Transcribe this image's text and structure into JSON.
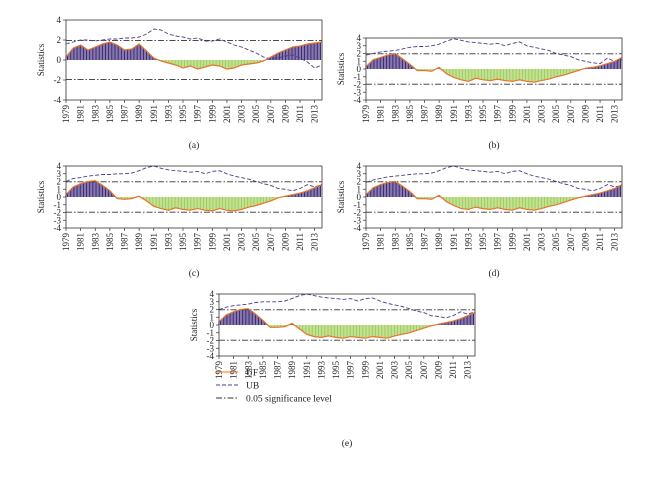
{
  "chart_data": [
    {
      "type": "line",
      "panel_label": "(a)",
      "ylabel": "Statistics",
      "ylim": [
        -4,
        4
      ],
      "yticks": [
        -4,
        -2,
        0,
        2,
        4
      ],
      "x": [
        1979,
        1980,
        1981,
        1982,
        1983,
        1984,
        1985,
        1986,
        1987,
        1988,
        1989,
        1990,
        1991,
        1992,
        1993,
        1994,
        1995,
        1996,
        1997,
        1998,
        1999,
        2000,
        2001,
        2002,
        2003,
        2004,
        2005,
        2006,
        2007,
        2008,
        2009,
        2010,
        2011,
        2012,
        2013,
        2014
      ],
      "xticks": [
        1979,
        1981,
        1983,
        1985,
        1987,
        1989,
        1991,
        1993,
        1995,
        1997,
        1999,
        2001,
        2003,
        2005,
        2007,
        2009,
        2011,
        2013
      ],
      "significance_level": [
        -1.96,
        1.96
      ],
      "series": [
        {
          "name": "UF",
          "values": [
            0.3,
            1.2,
            1.5,
            1.0,
            1.3,
            1.6,
            1.8,
            1.5,
            1.0,
            1.1,
            1.6,
            0.9,
            0.2,
            -0.1,
            -0.3,
            -0.5,
            -0.8,
            -0.6,
            -0.9,
            -0.7,
            -0.5,
            -0.6,
            -0.9,
            -0.8,
            -0.5,
            -0.4,
            -0.3,
            -0.1,
            0.3,
            0.7,
            1.0,
            1.3,
            1.4,
            1.6,
            1.7,
            1.8
          ]
        },
        {
          "name": "UB",
          "values": [
            1.6,
            1.8,
            2.0,
            2.0,
            1.9,
            2.0,
            2.1,
            2.1,
            2.2,
            2.2,
            2.3,
            2.6,
            3.1,
            3.0,
            2.6,
            2.4,
            2.3,
            2.1,
            2.2,
            1.9,
            1.9,
            2.1,
            1.8,
            1.5,
            1.3,
            1.0,
            0.7,
            0.3,
            0.1,
            0.2,
            0.4,
            0.5,
            0.2,
            -0.2,
            -0.8,
            -0.5
          ]
        }
      ]
    },
    {
      "type": "line",
      "panel_label": "(b)",
      "ylabel": "Statistics",
      "ylim": [
        -4,
        4
      ],
      "yticks": [
        -4,
        -3,
        -2,
        -1,
        0,
        1,
        2,
        3,
        4
      ],
      "x": [
        1979,
        1980,
        1981,
        1982,
        1983,
        1984,
        1985,
        1986,
        1987,
        1988,
        1989,
        1990,
        1991,
        1992,
        1993,
        1994,
        1995,
        1996,
        1997,
        1998,
        1999,
        2000,
        2001,
        2002,
        2003,
        2004,
        2005,
        2006,
        2007,
        2008,
        2009,
        2010,
        2011,
        2012,
        2013,
        2014
      ],
      "xticks": [
        1979,
        1981,
        1983,
        1985,
        1987,
        1989,
        1991,
        1993,
        1995,
        1997,
        1999,
        2001,
        2003,
        2005,
        2007,
        2009,
        2011,
        2013
      ],
      "significance_level": [
        -1.96,
        1.96
      ],
      "series": [
        {
          "name": "UF",
          "values": [
            0.3,
            1.2,
            1.5,
            1.8,
            2.0,
            1.3,
            0.6,
            -0.2,
            -0.2,
            -0.3,
            0.2,
            -0.6,
            -1.1,
            -1.4,
            -1.6,
            -1.2,
            -1.4,
            -1.5,
            -1.3,
            -1.5,
            -1.6,
            -1.4,
            -1.6,
            -1.7,
            -1.5,
            -1.3,
            -1.0,
            -0.8,
            -0.5,
            -0.2,
            0.1,
            0.2,
            0.4,
            0.7,
            1.0,
            1.5
          ]
        },
        {
          "name": "UB",
          "values": [
            1.8,
            2.0,
            2.2,
            2.3,
            2.4,
            2.6,
            2.8,
            2.9,
            2.9,
            3.0,
            3.2,
            3.6,
            3.9,
            3.7,
            3.5,
            3.4,
            3.3,
            3.2,
            3.3,
            3.0,
            3.3,
            3.5,
            3.0,
            2.8,
            2.6,
            2.4,
            2.0,
            1.8,
            1.6,
            1.2,
            1.0,
            0.8,
            0.7,
            1.4,
            1.0,
            1.2
          ]
        }
      ]
    },
    {
      "type": "line",
      "panel_label": "(c)",
      "ylabel": "Statistics",
      "ylim": [
        -4,
        4
      ],
      "yticks": [
        -4,
        -3,
        -2,
        -1,
        0,
        1,
        2,
        3,
        4
      ],
      "x": [
        1979,
        1980,
        1981,
        1982,
        1983,
        1984,
        1985,
        1986,
        1987,
        1988,
        1989,
        1990,
        1991,
        1992,
        1993,
        1994,
        1995,
        1996,
        1997,
        1998,
        1999,
        2000,
        2001,
        2002,
        2003,
        2004,
        2005,
        2006,
        2007,
        2008,
        2009,
        2010,
        2011,
        2012,
        2013,
        2014
      ],
      "xticks": [
        1979,
        1981,
        1983,
        1985,
        1987,
        1989,
        1991,
        1993,
        1995,
        1997,
        1999,
        2001,
        2003,
        2005,
        2007,
        2009,
        2011,
        2013
      ],
      "significance_level": [
        -1.96,
        1.96
      ],
      "series": [
        {
          "name": "UF",
          "values": [
            0.3,
            1.3,
            1.7,
            2.0,
            2.1,
            1.5,
            0.8,
            -0.2,
            -0.3,
            -0.2,
            0.1,
            -0.5,
            -1.2,
            -1.5,
            -1.7,
            -1.4,
            -1.6,
            -1.7,
            -1.5,
            -1.7,
            -1.8,
            -1.5,
            -1.7,
            -1.8,
            -1.6,
            -1.3,
            -1.1,
            -0.8,
            -0.5,
            -0.1,
            0.1,
            0.3,
            0.5,
            0.8,
            1.2,
            1.6
          ]
        },
        {
          "name": "UB",
          "values": [
            2.0,
            2.4,
            2.5,
            2.7,
            2.8,
            2.9,
            2.9,
            3.0,
            3.0,
            3.1,
            3.4,
            3.8,
            4.0,
            3.7,
            3.5,
            3.4,
            3.3,
            3.2,
            3.3,
            3.0,
            3.3,
            3.4,
            3.0,
            2.7,
            2.5,
            2.3,
            2.0,
            1.7,
            1.5,
            1.1,
            1.0,
            0.8,
            1.1,
            1.6,
            1.3,
            1.6
          ]
        }
      ]
    },
    {
      "type": "line",
      "panel_label": "(d)",
      "ylabel": "Statistics",
      "ylim": [
        -4,
        4
      ],
      "yticks": [
        -4,
        -3,
        -2,
        -1,
        0,
        1,
        2,
        3,
        4
      ],
      "x": [
        1979,
        1980,
        1981,
        1982,
        1983,
        1984,
        1985,
        1986,
        1987,
        1988,
        1989,
        1990,
        1991,
        1992,
        1993,
        1994,
        1995,
        1996,
        1997,
        1998,
        1999,
        2000,
        2001,
        2002,
        2003,
        2004,
        2005,
        2006,
        2007,
        2008,
        2009,
        2010,
        2011,
        2012,
        2013,
        2014
      ],
      "xticks": [
        1979,
        1981,
        1983,
        1985,
        1987,
        1989,
        1991,
        1993,
        1995,
        1997,
        1999,
        2001,
        2003,
        2005,
        2007,
        2009,
        2011,
        2013
      ],
      "significance_level": [
        -1.96,
        1.96
      ],
      "series": [
        {
          "name": "UF",
          "values": [
            0.3,
            1.2,
            1.6,
            1.9,
            2.0,
            1.4,
            0.7,
            -0.2,
            -0.2,
            -0.3,
            0.2,
            -0.6,
            -1.1,
            -1.5,
            -1.6,
            -1.3,
            -1.5,
            -1.6,
            -1.4,
            -1.6,
            -1.7,
            -1.4,
            -1.6,
            -1.7,
            -1.5,
            -1.2,
            -1.0,
            -0.7,
            -0.4,
            -0.1,
            0.1,
            0.3,
            0.5,
            0.8,
            1.1,
            1.6
          ]
        },
        {
          "name": "UB",
          "values": [
            1.9,
            2.2,
            2.4,
            2.6,
            2.7,
            2.8,
            2.9,
            3.0,
            3.0,
            3.1,
            3.4,
            3.8,
            4.0,
            3.7,
            3.5,
            3.4,
            3.3,
            3.2,
            3.3,
            3.0,
            3.3,
            3.4,
            3.0,
            2.7,
            2.5,
            2.3,
            2.0,
            1.7,
            1.5,
            1.1,
            1.0,
            0.8,
            1.1,
            1.6,
            1.3,
            1.5
          ]
        }
      ]
    },
    {
      "type": "line",
      "panel_label": "(e)",
      "ylabel": "Statistics",
      "ylim": [
        -4,
        4
      ],
      "yticks": [
        -4,
        -3,
        -2,
        -1,
        0,
        1,
        2,
        3,
        4
      ],
      "x": [
        1979,
        1980,
        1981,
        1982,
        1983,
        1984,
        1985,
        1986,
        1987,
        1988,
        1989,
        1990,
        1991,
        1992,
        1993,
        1994,
        1995,
        1996,
        1997,
        1998,
        1999,
        2000,
        2001,
        2002,
        2003,
        2004,
        2005,
        2006,
        2007,
        2008,
        2009,
        2010,
        2011,
        2012,
        2013,
        2014
      ],
      "xticks": [
        1979,
        1981,
        1983,
        1985,
        1987,
        1989,
        1991,
        1993,
        1995,
        1997,
        1999,
        2001,
        2003,
        2005,
        2007,
        2009,
        2011,
        2013
      ],
      "significance_level": [
        -1.96,
        1.96
      ],
      "series": [
        {
          "name": "UF",
          "values": [
            0.4,
            1.3,
            1.7,
            2.0,
            2.1,
            1.4,
            0.6,
            -0.3,
            -0.3,
            -0.2,
            0.2,
            -0.5,
            -1.2,
            -1.5,
            -1.6,
            -1.4,
            -1.6,
            -1.7,
            -1.5,
            -1.6,
            -1.7,
            -1.5,
            -1.6,
            -1.7,
            -1.4,
            -1.2,
            -1.0,
            -0.7,
            -0.4,
            -0.1,
            0.1,
            0.3,
            0.5,
            0.8,
            1.2,
            1.6
          ]
        },
        {
          "name": "UB",
          "values": [
            2.0,
            2.3,
            2.5,
            2.6,
            2.7,
            2.9,
            3.0,
            3.0,
            3.0,
            3.1,
            3.4,
            3.8,
            4.0,
            3.8,
            3.6,
            3.5,
            3.4,
            3.3,
            3.4,
            3.1,
            3.4,
            3.5,
            3.1,
            2.8,
            2.6,
            2.4,
            2.1,
            1.8,
            1.6,
            1.2,
            1.1,
            0.9,
            1.2,
            1.7,
            1.4,
            1.7
          ]
        }
      ],
      "legend": {
        "placement": "below-plot",
        "entries": [
          {
            "label": "UF",
            "style": "solid",
            "color": "#e8742a"
          },
          {
            "label": "UB",
            "style": "dashed",
            "color": "#4a3f86"
          },
          {
            "label": "0.05 significance level",
            "style": "dash-dot",
            "color": "#333333"
          }
        ]
      }
    }
  ],
  "colors": {
    "uf_line": "#e8742a",
    "ub_line": "#4a3f86",
    "positive_bars": "#3f2b79",
    "negative_bars": "#9fce5a",
    "significance_line": "#333333"
  }
}
